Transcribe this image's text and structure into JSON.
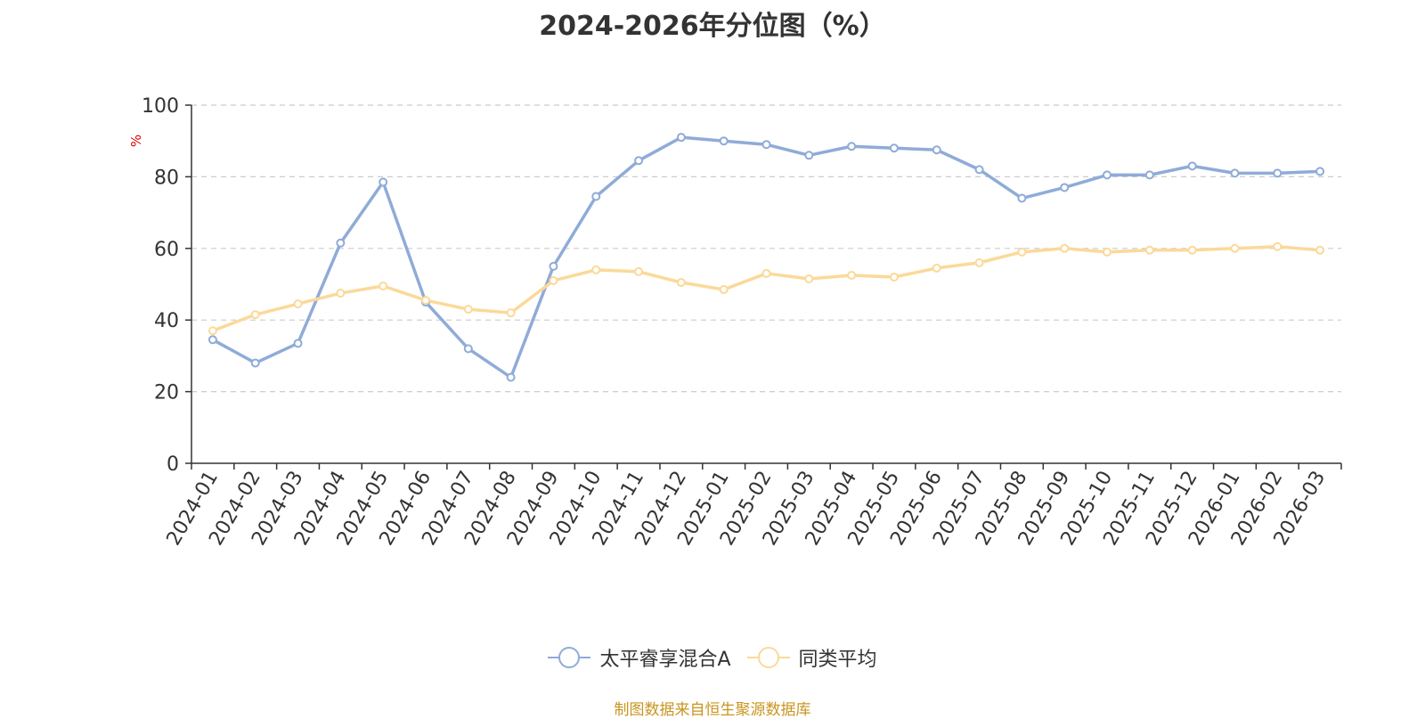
{
  "chart_data": {
    "type": "line",
    "title": "2024-2026年分位图（%）",
    "ylabel": "%",
    "xlabel": "",
    "ylim": [
      0,
      100
    ],
    "yticks": [
      0,
      20,
      40,
      60,
      80,
      100
    ],
    "grid": true,
    "legend_position": "bottom",
    "categories": [
      "2024-01",
      "2024-02",
      "2024-03",
      "2024-04",
      "2024-05",
      "2024-06",
      "2024-07",
      "2024-08",
      "2024-09",
      "2024-10",
      "2024-11",
      "2024-12",
      "2025-01",
      "2025-02",
      "2025-03",
      "2025-04",
      "2025-05",
      "2025-06",
      "2025-07",
      "2025-08",
      "2025-09",
      "2025-10",
      "2025-11",
      "2025-12",
      "2026-01",
      "2026-02",
      "2026-03"
    ],
    "series": [
      {
        "name": "太平睿享混合A",
        "color": "#8fabd8",
        "values": [
          34.5,
          28.0,
          33.5,
          61.5,
          78.5,
          45.0,
          32.0,
          24.0,
          55.0,
          74.5,
          84.5,
          91.0,
          90.0,
          89.0,
          86.0,
          88.5,
          88.0,
          87.5,
          82.0,
          74.0,
          77.0,
          80.5,
          80.5,
          83.0,
          81.0,
          81.0,
          81.5
        ]
      },
      {
        "name": "同类平均",
        "color": "#fbd999",
        "values": [
          37.0,
          41.5,
          44.5,
          47.5,
          49.5,
          45.5,
          43.0,
          42.0,
          51.0,
          54.0,
          53.5,
          50.5,
          48.5,
          53.0,
          51.5,
          52.5,
          52.0,
          54.5,
          56.0,
          59.0,
          60.0,
          59.0,
          59.5,
          59.5,
          60.0,
          60.5,
          59.5
        ]
      }
    ]
  },
  "footer": {
    "source": "制图数据来自恒生聚源数据库",
    "source_color": "#c9951f"
  }
}
